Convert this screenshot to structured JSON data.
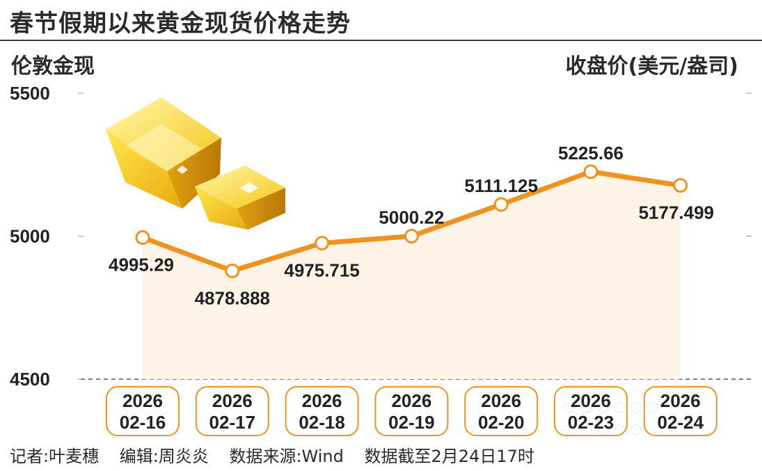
{
  "title": "春节假期以来黄金现货价格走势",
  "left_label": "伦敦金现",
  "right_label": "收盘价(美元/盎司)",
  "footer": {
    "reporter": "记者:叶麦穗",
    "editor": "编辑:周炎炎",
    "source": "数据来源:Wind",
    "cutoff": "数据截至2月24日17时"
  },
  "colors": {
    "line": "#f0921f",
    "area": "#fdf3e6",
    "pill_border": "#f0921f",
    "text": "#222222"
  },
  "chart_data": {
    "type": "line",
    "ylim": [
      4500,
      5500
    ],
    "yticks": [
      5500,
      5000,
      4500
    ],
    "categories": [
      {
        "year": "2026",
        "date": "02-16"
      },
      {
        "year": "2026",
        "date": "02-17"
      },
      {
        "year": "2026",
        "date": "02-18"
      },
      {
        "year": "2026",
        "date": "02-19"
      },
      {
        "year": "2026",
        "date": "02-20"
      },
      {
        "year": "2026",
        "date": "02-23"
      },
      {
        "year": "2026",
        "date": "02-24"
      }
    ],
    "values": [
      4995.29,
      4878.888,
      4975.715,
      5000.22,
      5111.125,
      5225.66,
      5177.499
    ],
    "value_labels": [
      "4995.29",
      "4878.888",
      "4975.715",
      "5000.22",
      "5111.125",
      "5225.66",
      "5177.499"
    ],
    "label_side": [
      "below",
      "below",
      "below",
      "above",
      "above",
      "above",
      "below"
    ],
    "grid": false,
    "xlabel": "",
    "ylabel": ""
  }
}
